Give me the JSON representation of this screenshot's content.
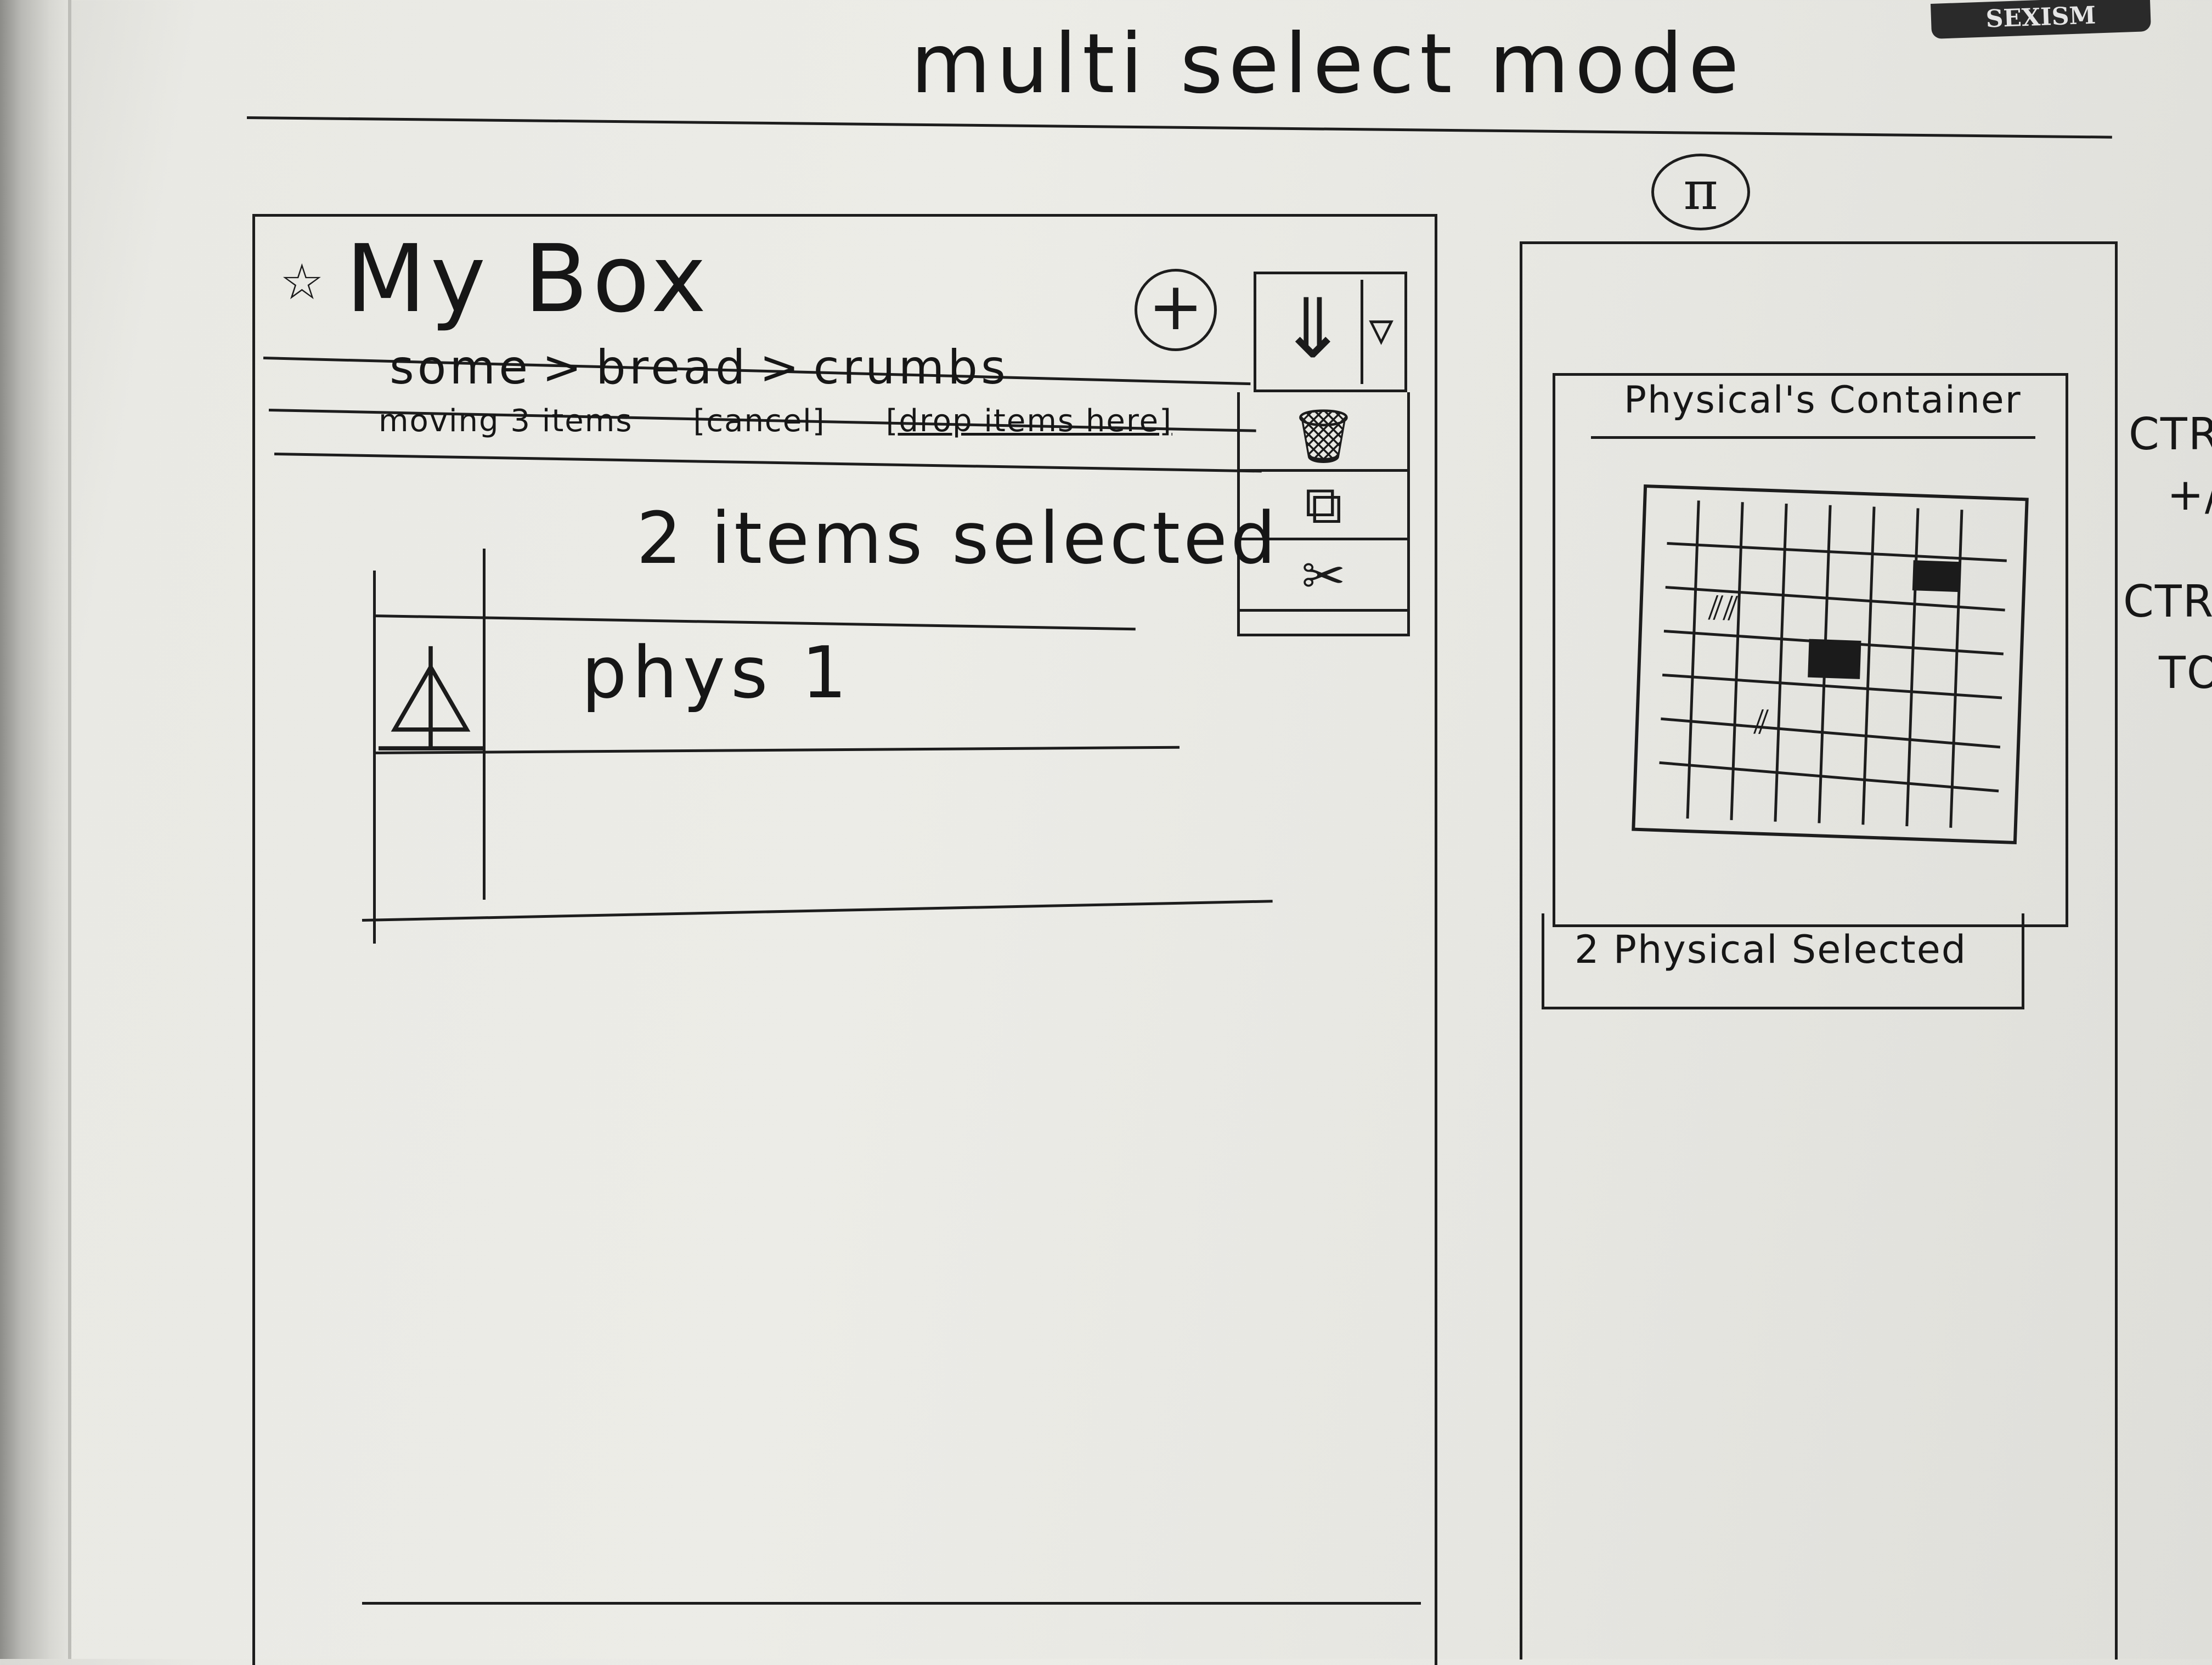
{
  "board": {
    "title": "multi select mode",
    "sticker": "SEXISM"
  },
  "app": {
    "page_title": "My Box",
    "breadcrumb": [
      "some",
      "bread",
      "crumbs"
    ],
    "breadcrumb_separator": ">",
    "move_bar": {
      "status": "moving 3 items",
      "cancel_label": "[cancel]",
      "drop_label": "[drop items here]"
    },
    "selection_title": "2 items selected",
    "rows": [
      {
        "icon": "flask-icon",
        "label": "phys 1"
      }
    ],
    "add_button_label": "+",
    "actions_menu": [
      "trash-icon",
      "copy-icon",
      "cut-icon"
    ]
  },
  "right_panel": {
    "badge": "π",
    "card_title": "Physical's Container",
    "footer": "2 Physical Selected"
  },
  "edge_notes": [
    "CTRL",
    "+/",
    "CTRL",
    "TO"
  ]
}
